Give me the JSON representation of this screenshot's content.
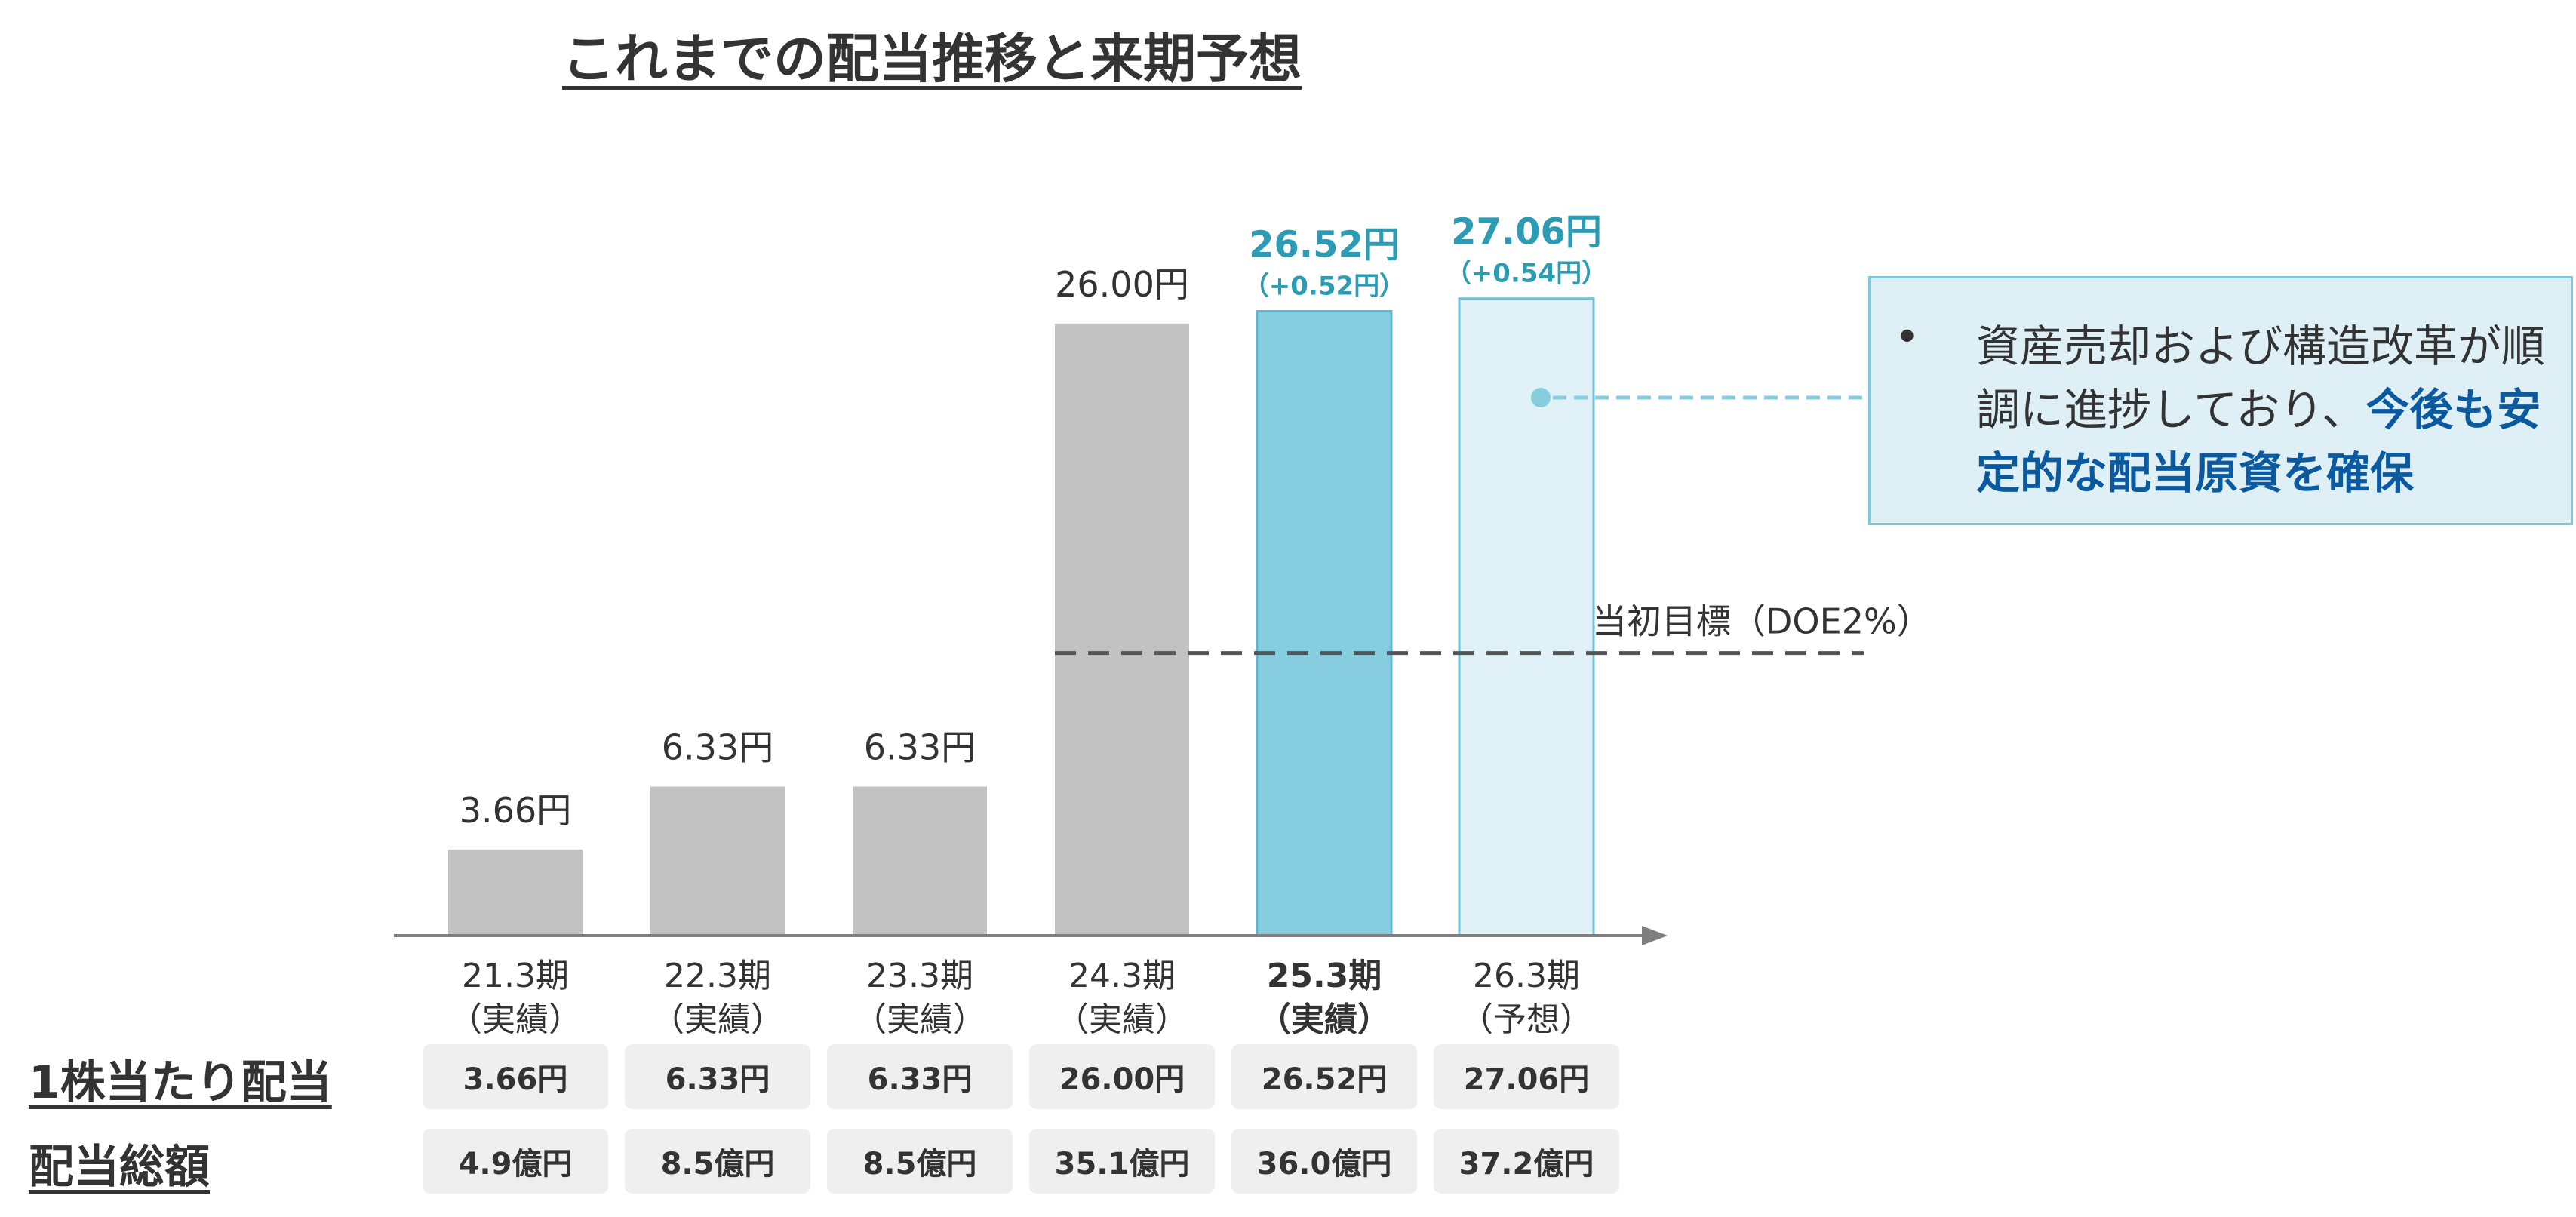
{
  "title": "これまでの配当推移と来期予想",
  "chart_data": {
    "type": "bar",
    "categories": [
      {
        "period": "21.3期",
        "status": "（実績）"
      },
      {
        "period": "22.3期",
        "status": "（実績）"
      },
      {
        "period": "23.3期",
        "status": "（実績）"
      },
      {
        "period": "24.3期",
        "status": "（実績）"
      },
      {
        "period": "25.3期",
        "status": "（実績）"
      },
      {
        "period": "26.3期",
        "status": "（予想）"
      }
    ],
    "values": [
      3.66,
      6.33,
      6.33,
      26.0,
      26.52,
      27.06
    ],
    "value_labels": [
      "3.66円",
      "6.33円",
      "6.33円",
      "26.00円",
      "26.52円",
      "27.06円"
    ],
    "change_labels": [
      "",
      "",
      "",
      "",
      "（+0.52円）",
      "（+0.54円）"
    ],
    "unit": "円",
    "ylim": [
      0,
      30
    ],
    "highlight_index": 4,
    "colors": {
      "actual": "#c2c2c2",
      "current": "#87cde0",
      "current_border": "#5bb7cf",
      "forecast": "#e0f1f7",
      "forecast_border": "#6cc3d8",
      "highlight_text": "#2b9cb4",
      "target_line": "#555555",
      "axis": "#7f7f7f"
    },
    "reference_line": {
      "label": "当初目標（DOE2%）",
      "value": 12
    }
  },
  "table": {
    "rows": [
      {
        "label": "1株当たり配当",
        "cells": [
          "3.66円",
          "6.33円",
          "6.33円",
          "26.00円",
          "26.52円",
          "27.06円"
        ]
      },
      {
        "label": "配当総額",
        "cells": [
          "4.9億円",
          "8.5億円",
          "8.5億円",
          "35.1億円",
          "36.0億円",
          "37.2億円"
        ]
      }
    ]
  },
  "callout": {
    "bullet": "•",
    "text_before": "資産売却および構造改革が順調に進捗しており、",
    "text_emphasis": "今後も安定的な配当原資を確保"
  }
}
